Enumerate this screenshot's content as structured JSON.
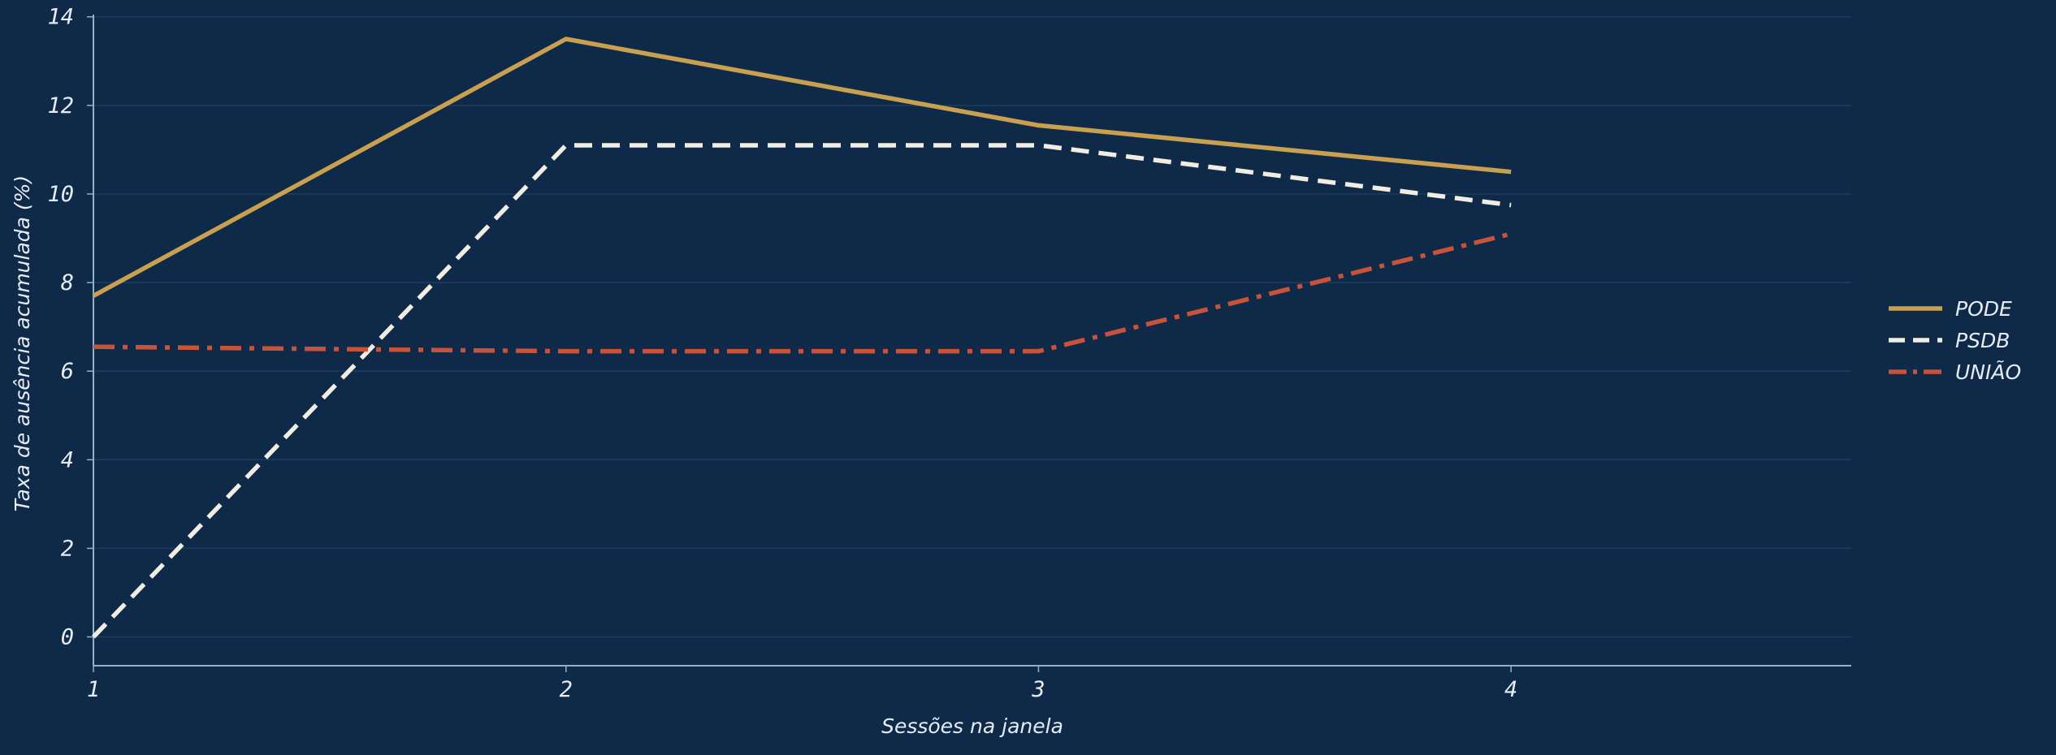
{
  "chart_data": {
    "type": "line",
    "title": "",
    "xlabel": "Sessões na janela",
    "ylabel": "Taxa de ausência acumulada (%)",
    "x": [
      1,
      2,
      3,
      4
    ],
    "xticks": [
      "1",
      "2",
      "3",
      "4"
    ],
    "xlim": [
      1,
      4.72
    ],
    "yticks": [
      "0",
      "2",
      "4",
      "6",
      "8",
      "10",
      "12",
      "14"
    ],
    "ylim": [
      -0.65,
      14.05
    ],
    "grid": "horizontal",
    "legend_position": "right",
    "series": [
      {
        "name": "PODE",
        "values": [
          7.7,
          13.5,
          11.55,
          10.5
        ],
        "color": "#c9a050",
        "style": "solid"
      },
      {
        "name": "PSDB",
        "values": [
          0.0,
          11.1,
          11.1,
          9.75
        ],
        "color": "#f2ede2",
        "style": "dashed"
      },
      {
        "name": "UNIÃO",
        "values": [
          6.55,
          6.45,
          6.45,
          9.1
        ],
        "color": "#c9533a",
        "style": "dashdot"
      }
    ]
  },
  "theme": {
    "background": "#0f2a48",
    "axis_color": "#8fb3cc",
    "grid_color": "#1d3d5e",
    "text_color": "#e6ecf3"
  }
}
